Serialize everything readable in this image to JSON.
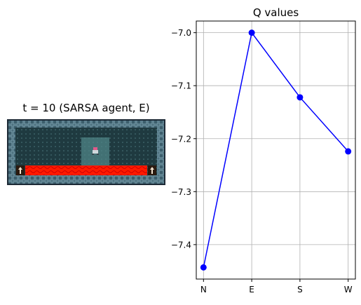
{
  "env": {
    "title": "t = 10 (SARSA agent, E)",
    "colors": {
      "frame": "#1d2a36",
      "wall": "#7fa6b4",
      "wall_dark": "#3c5e6c",
      "floor": "#1f3a40",
      "floor_dot": "#4d7a80",
      "highlight": "#4f8486",
      "lava": "#ff1a00",
      "lava_dark": "#d00000"
    }
  },
  "chart_data": {
    "type": "line",
    "title": "Q values",
    "xlabel": "",
    "ylabel": "",
    "categories": [
      "N",
      "E",
      "S",
      "W"
    ],
    "series": [
      {
        "values": [
          -7.443,
          -7.0,
          -7.122,
          -7.224
        ],
        "color": "#0000ff",
        "marker": "circle"
      }
    ],
    "ylim": [
      -7.465,
      -6.978
    ],
    "yticks": [
      -7.4,
      -7.3,
      -7.2,
      -7.1,
      -7.0
    ],
    "ytick_labels": [
      "−7.4",
      "−7.3",
      "−7.2",
      "−7.1",
      "−7.0"
    ],
    "grid": true
  }
}
